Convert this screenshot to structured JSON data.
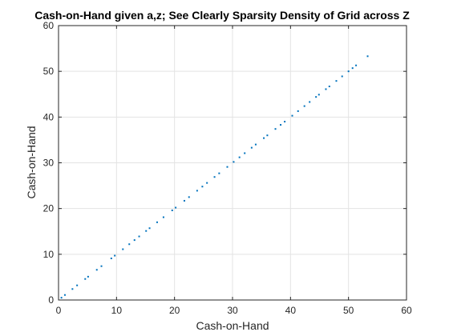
{
  "chart_data": {
    "type": "scatter",
    "title": "Cash-on-Hand given a,z; See Clearly Sparsity Density of Grid across Z",
    "xlabel": "Cash-on-Hand",
    "ylabel": "Cash-on-Hand",
    "xlim": [
      0,
      60
    ],
    "ylim": [
      0,
      60
    ],
    "xticks": [
      0,
      10,
      20,
      30,
      40,
      50,
      60
    ],
    "yticks": [
      0,
      10,
      20,
      30,
      40,
      50,
      60
    ],
    "grid": true,
    "marker_color": "#0072BD",
    "series": [
      {
        "x": [
          0.5,
          1.1,
          2.4,
          3.2,
          4.6,
          5.1,
          6.6,
          7.4,
          9.1,
          9.7,
          11.1,
          12.2,
          13.1,
          13.9,
          15.1,
          15.7,
          17.0,
          18.1,
          19.6,
          20.2,
          21.7,
          22.5,
          23.9,
          24.8,
          25.6,
          26.9,
          27.7,
          29.1,
          30.2,
          31.2,
          32.1,
          33.3,
          34.0,
          35.4,
          36.0,
          37.4,
          38.3,
          39.0,
          40.3,
          41.3,
          42.4,
          43.3,
          44.4,
          44.9,
          46.1,
          46.7,
          47.9,
          48.9,
          50.0,
          50.7,
          51.3,
          53.3
        ],
        "y": [
          0.5,
          1.1,
          2.4,
          3.2,
          4.6,
          5.1,
          6.6,
          7.4,
          9.1,
          9.7,
          11.1,
          12.2,
          13.1,
          13.9,
          15.1,
          15.7,
          17.0,
          18.1,
          19.6,
          20.2,
          21.7,
          22.5,
          23.9,
          24.8,
          25.6,
          26.9,
          27.7,
          29.1,
          30.2,
          31.2,
          32.1,
          33.3,
          34.0,
          35.4,
          36.0,
          37.4,
          38.3,
          39.0,
          40.3,
          41.3,
          42.4,
          43.3,
          44.4,
          44.9,
          46.1,
          46.7,
          47.9,
          48.9,
          50.0,
          50.7,
          51.3,
          53.3
        ]
      }
    ]
  }
}
